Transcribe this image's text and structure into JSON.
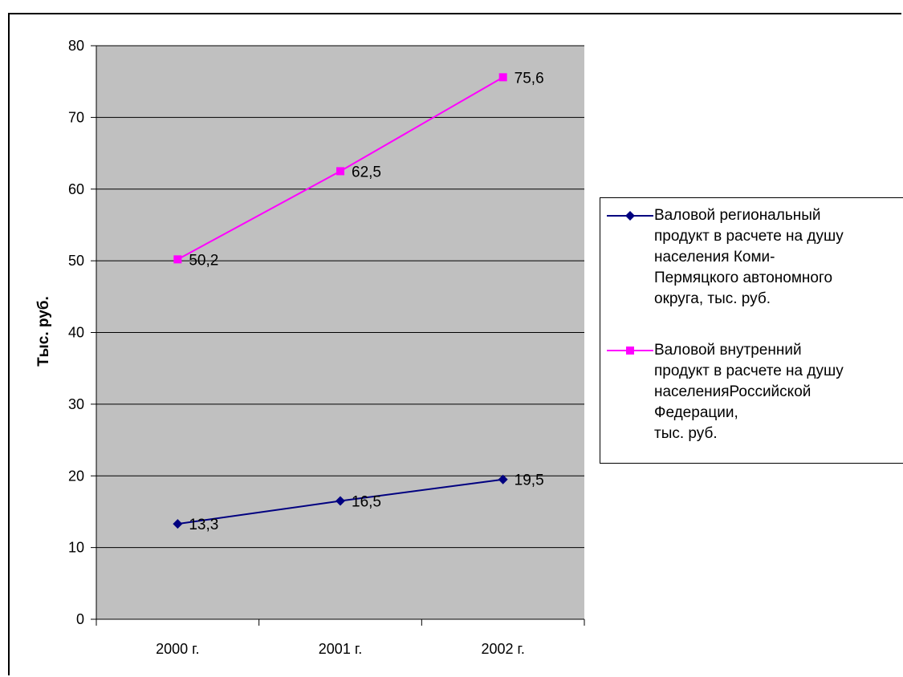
{
  "chart_data": {
    "type": "line",
    "categories": [
      "2000 г.",
      "2001 г.",
      "2002 г."
    ],
    "ylabel": "Тыс. руб.",
    "ylim": [
      0,
      80
    ],
    "yticks": [
      "0",
      "10",
      "20",
      "30",
      "40",
      "50",
      "60",
      "70",
      "80"
    ],
    "yticks_values": [
      0,
      10,
      20,
      30,
      40,
      50,
      60,
      70,
      80
    ],
    "grid": true,
    "legend_position": "right",
    "plot_background": "#c0c0c0",
    "series": [
      {
        "name": "Валовой региональный\nпродукт в расчете на душу\nнаселения Коми-\nПермяцкого автономного\nокруга, тыс. руб.",
        "values": [
          13.3,
          16.5,
          19.5
        ],
        "labels": [
          "13,3",
          "16,5",
          "19,5"
        ],
        "color": "#000080",
        "marker": "diamond"
      },
      {
        "name": "Валовой внутренний\nпродукт  в расчете на душу\nнаселенияРоссийской\nФедерации,\nтыс. руб.",
        "values": [
          50.2,
          62.5,
          75.6
        ],
        "labels": [
          "50,2",
          "62,5",
          "75,6"
        ],
        "color": "#ff00ff",
        "marker": "square"
      }
    ]
  }
}
